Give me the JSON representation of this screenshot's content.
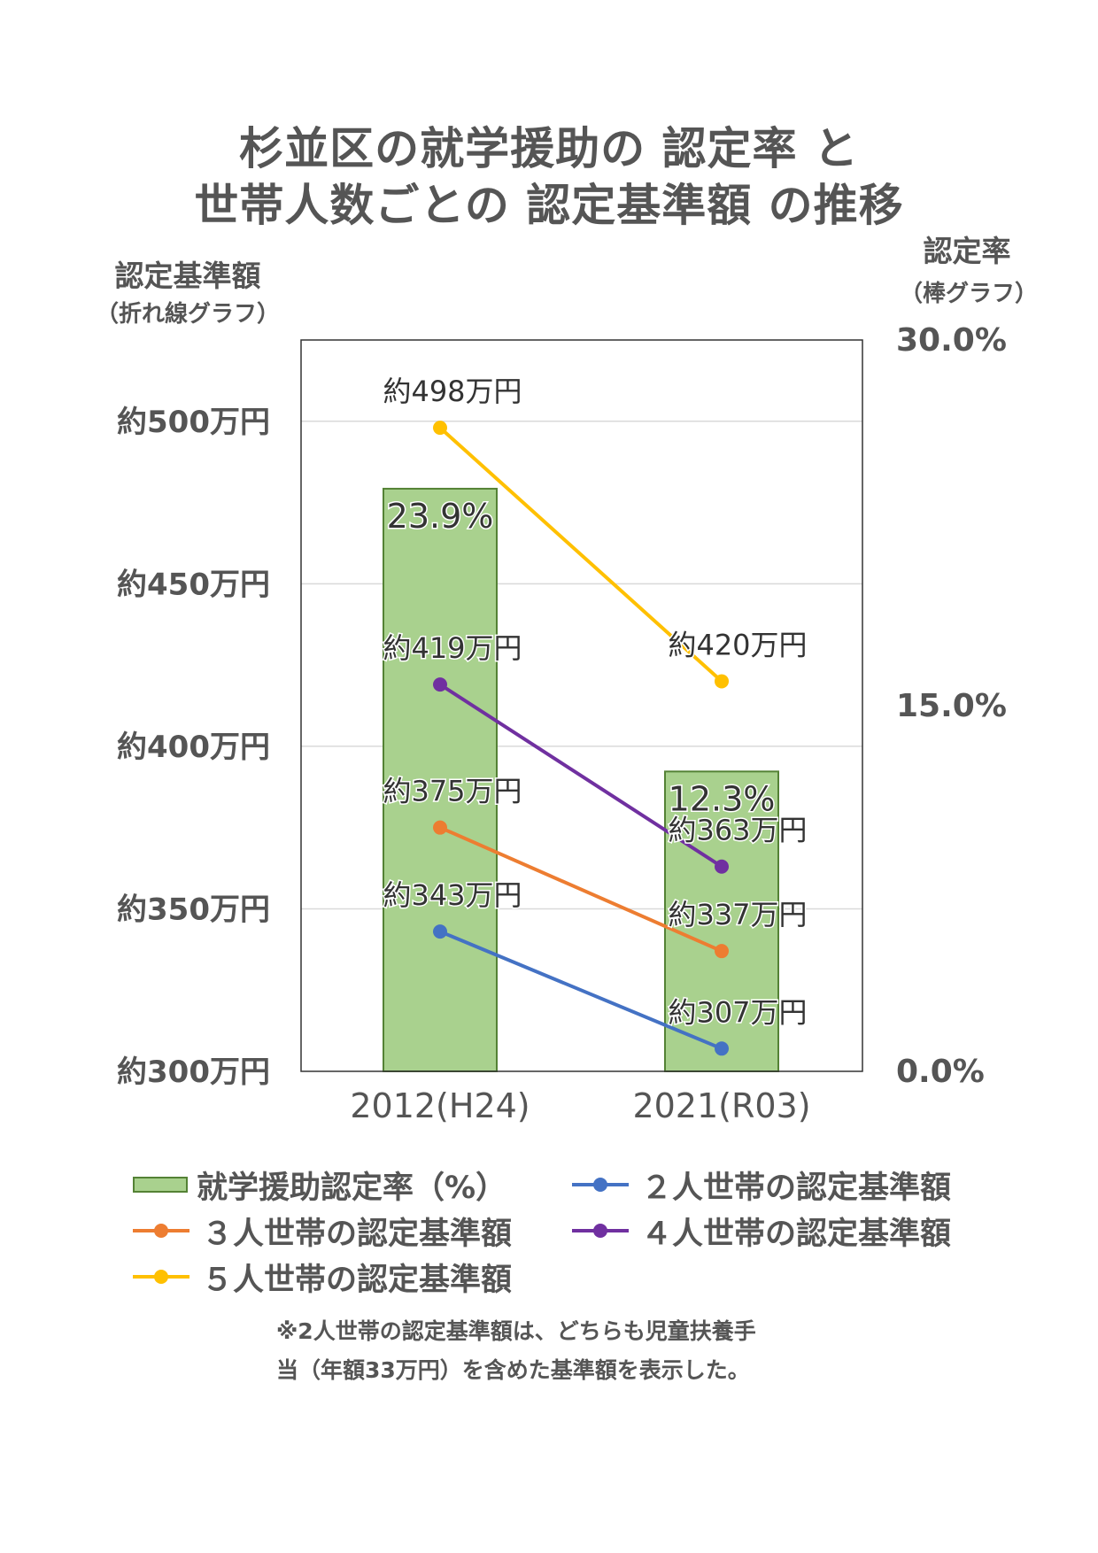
{
  "title": {
    "line1": "杉並区の就学援助の 認定率 と",
    "line2": "世帯人数ごとの 認定基準額 の推移"
  },
  "chart_data": {
    "type": "bar",
    "categories": [
      "2012(H24)",
      "2021(R03)"
    ],
    "left_axis": {
      "title": "認定基準額",
      "subtitle": "（折れ線グラフ）",
      "range": [
        300,
        525
      ],
      "ticks": [
        300,
        350,
        400,
        450,
        500
      ],
      "tick_labels": [
        "約300万円",
        "約350万円",
        "約400万円",
        "約450万円",
        "約500万円"
      ]
    },
    "right_axis": {
      "title": "認定率",
      "subtitle": "（棒グラフ）",
      "range": [
        0,
        30
      ],
      "ticks": [
        0,
        15,
        30
      ],
      "tick_labels": [
        "0.0%",
        "15.0%",
        "30.0%"
      ]
    },
    "gridlines": [
      350,
      400,
      450,
      500
    ],
    "bars": {
      "name": "就学援助認定率（%）",
      "values": [
        23.9,
        12.3
      ],
      "labels": [
        "23.9%",
        "12.3%"
      ],
      "color": "#a9d18e",
      "border": "#548235"
    },
    "series": [
      {
        "name": "２人世帯の認定基準額",
        "values": [
          343,
          307
        ],
        "labels": [
          "約343万円",
          "約307万円"
        ],
        "color": "#4472c4"
      },
      {
        "name": "３人世帯の認定基準額",
        "values": [
          375,
          337
        ],
        "labels": [
          "約375万円",
          "約337万円"
        ],
        "color": "#ed7d31"
      },
      {
        "name": "４人世帯の認定基準額",
        "values": [
          419,
          363
        ],
        "labels": [
          "約419万円",
          "約363万円"
        ],
        "color": "#7030a0"
      },
      {
        "name": "５人世帯の認定基準額",
        "values": [
          498,
          420
        ],
        "labels": [
          "約498万円",
          "約420万円"
        ],
        "color": "#ffc000"
      }
    ]
  },
  "legend": {
    "items": [
      {
        "label": "就学援助認定率（%）"
      },
      {
        "label": "２人世帯の認定基準額"
      },
      {
        "label": "３人世帯の認定基準額"
      },
      {
        "label": "４人世帯の認定基準額"
      },
      {
        "label": "５人世帯の認定基準額"
      }
    ]
  },
  "note": {
    "line1": "※2人世帯の認定基準額は、どちらも児童扶養手",
    "line2": "当（年額33万円）を含めた基準額を表示した。"
  }
}
